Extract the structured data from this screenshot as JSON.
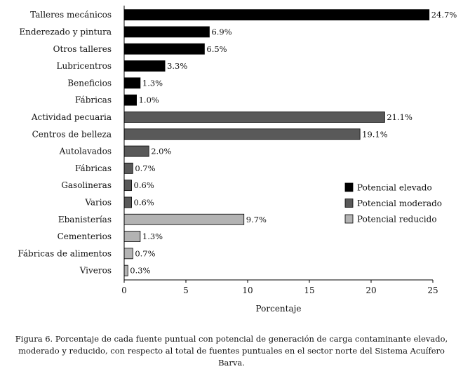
{
  "chart_data": {
    "type": "bar",
    "orientation": "horizontal",
    "title": "",
    "xlabel": "Porcentaje",
    "ylabel": "",
    "xlim": [
      0,
      25
    ],
    "xticks": [
      0,
      5,
      10,
      15,
      20,
      25
    ],
    "grid": false,
    "legend_position": "right",
    "value_suffix": "%",
    "categories": [
      "Talleres mecánicos",
      "Enderezado y pintura",
      "Otros talleres",
      "Lubricentros",
      "Beneficios",
      "Fábricas",
      "Actividad pecuaria",
      "Centros de belleza",
      "Autolavados",
      "Fábricas",
      "Gasolineras",
      "Varios",
      "Ebanisterías",
      "Cementerios",
      "Fábricas de alimentos",
      "Viveros"
    ],
    "values": [
      24.7,
      6.9,
      6.5,
      3.3,
      1.3,
      1.0,
      21.1,
      19.1,
      2.0,
      0.7,
      0.6,
      0.6,
      9.7,
      1.3,
      0.7,
      0.3
    ],
    "value_labels": [
      "24.7%",
      "6.9%",
      "6.5%",
      "3.3%",
      "1.3%",
      "1.0%",
      "21.1%",
      "19.1%",
      "2.0%",
      "0.7%",
      "0.6%",
      "0.6%",
      "9.7%",
      "1.3%",
      "0.7%",
      "0.3%"
    ],
    "series_of_bar": [
      0,
      0,
      0,
      0,
      0,
      0,
      1,
      1,
      1,
      1,
      1,
      1,
      2,
      2,
      2,
      2
    ],
    "series": [
      {
        "name": "Potencial elevado",
        "color": "#000000"
      },
      {
        "name": "Potencial moderado",
        "color": "#595959"
      },
      {
        "name": "Potencial reducido",
        "color": "#b3b3b3"
      }
    ]
  },
  "caption": "Figura 6. Porcentaje de cada fuente puntual con potencial de generación de carga contaminante elevado, moderado y reducido, con respecto al total de fuentes puntuales en el sector norte del Sistema Acuífero Barva."
}
